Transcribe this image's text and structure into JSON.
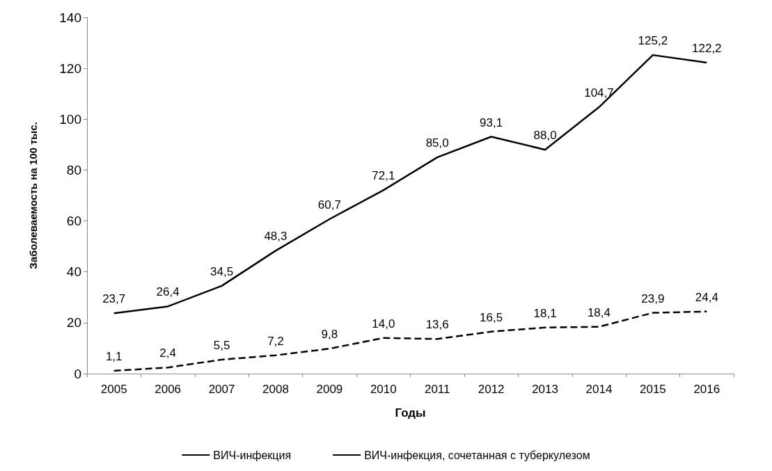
{
  "chart_data": {
    "type": "line",
    "xlabel": "Годы",
    "ylabel": "Заболеваемость на 100 тыс.",
    "categories": [
      "2005",
      "2006",
      "2007",
      "2008",
      "2009",
      "2010",
      "2011",
      "2012",
      "2013",
      "2014",
      "2015",
      "2016"
    ],
    "series": [
      {
        "name": "ВИЧ-инфекция",
        "color": "#000000",
        "line_style": "solid",
        "values": [
          23.7,
          26.4,
          34.5,
          48.3,
          60.7,
          72.1,
          85.0,
          93.1,
          88.0,
          104.7,
          125.2,
          122.2
        ],
        "value_labels": [
          "23,7",
          "26,4",
          "34,5",
          "48,3",
          "60,7",
          "72,1",
          "85,0",
          "93,1",
          "88,0",
          "104,7",
          "125,2",
          "122,2"
        ]
      },
      {
        "name": "ВИЧ-инфекция, сочетанная с туберкулезом",
        "color": "#000000",
        "line_style": "dashed",
        "values": [
          1.1,
          2.4,
          5.5,
          7.2,
          9.8,
          14.0,
          13.6,
          16.5,
          18.1,
          18.4,
          23.9,
          24.4
        ],
        "value_labels": [
          "1,1",
          "2,4",
          "5,5",
          "7,2",
          "9,8",
          "14,0",
          "13,6",
          "16,5",
          "18,1",
          "18,4",
          "23,9",
          "24,4"
        ]
      }
    ],
    "ylim": [
      0,
      140
    ],
    "yticks": [
      0,
      20,
      40,
      60,
      80,
      100,
      120,
      140
    ],
    "grid": false,
    "legend": "bottom",
    "marker": "none"
  }
}
